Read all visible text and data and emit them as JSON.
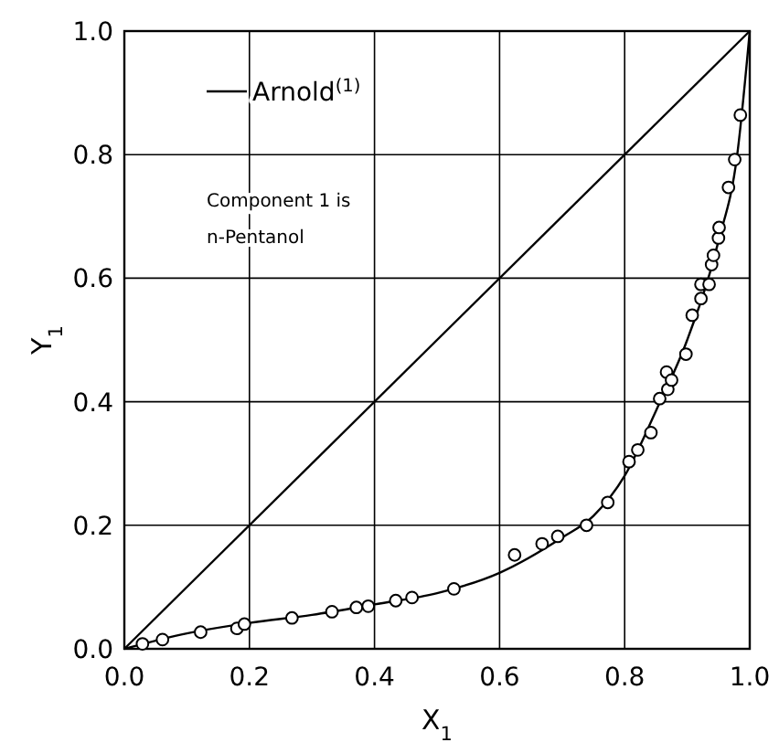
{
  "chart_data": {
    "type": "scatter",
    "xlabel": "X$_{1}$",
    "ylabel": "Y$_{1}$",
    "xlim": [
      0,
      1
    ],
    "ylim": [
      0,
      1
    ],
    "xticks": [
      {
        "value": 0,
        "label": "0.0"
      },
      {
        "value": 0.2,
        "label": "0.2"
      },
      {
        "value": 0.4,
        "label": "0.4"
      },
      {
        "value": 0.6,
        "label": "0.6"
      },
      {
        "value": 0.8,
        "label": "0.8"
      },
      {
        "value": 1,
        "label": "1.0"
      }
    ],
    "yticks": [
      {
        "value": 0,
        "label": "0.0"
      },
      {
        "value": 0.2,
        "label": "0.2"
      },
      {
        "value": 0.4,
        "label": "0.4"
      },
      {
        "value": 0.6,
        "label": "0.6"
      },
      {
        "value": 0.8,
        "label": "0.8"
      },
      {
        "value": 1,
        "label": "1.0"
      }
    ],
    "grid": true,
    "legend": "top left",
    "annotations": [
      "Component 1 is",
      "n-Pentanol"
    ],
    "series": [
      {
        "type": "line",
        "color": "#000000",
        "marker": "none",
        "x": [
          0,
          1
        ],
        "values": [
          0,
          1
        ]
      },
      {
        "type": "line",
        "name": "Arnold$^{(1)}$",
        "color": "#000000",
        "marker": "none",
        "x": [
          0,
          0.1,
          0.2,
          0.3,
          0.4,
          0.5,
          0.6,
          0.7,
          0.75,
          0.8,
          0.85,
          0.9,
          0.95,
          0.98,
          1
        ],
        "values": [
          0,
          0.025,
          0.042,
          0.055,
          0.072,
          0.09,
          0.123,
          0.18,
          0.215,
          0.28,
          0.385,
          0.5,
          0.66,
          0.8,
          1
        ]
      },
      {
        "color": "#000000",
        "marker": "circle",
        "x": [
          0.029,
          0.061,
          0.122,
          0.18,
          0.192,
          0.268,
          0.332,
          0.371,
          0.39,
          0.434,
          0.46,
          0.527,
          0.624,
          0.668,
          0.693,
          0.739,
          0.773,
          0.807,
          0.821,
          0.842,
          0.856,
          0.869,
          0.867,
          0.875,
          0.898,
          0.908,
          0.922,
          0.922,
          0.935,
          0.939,
          0.942,
          0.95,
          0.951,
          0.966,
          0.976,
          0.985
        ],
        "values": [
          0.008,
          0.015,
          0.027,
          0.033,
          0.04,
          0.05,
          0.06,
          0.067,
          0.069,
          0.078,
          0.083,
          0.097,
          0.152,
          0.17,
          0.182,
          0.2,
          0.237,
          0.303,
          0.322,
          0.35,
          0.405,
          0.42,
          0.448,
          0.435,
          0.477,
          0.54,
          0.567,
          0.59,
          0.59,
          0.622,
          0.637,
          0.665,
          0.682,
          0.747,
          0.792,
          0.864
        ]
      }
    ]
  }
}
